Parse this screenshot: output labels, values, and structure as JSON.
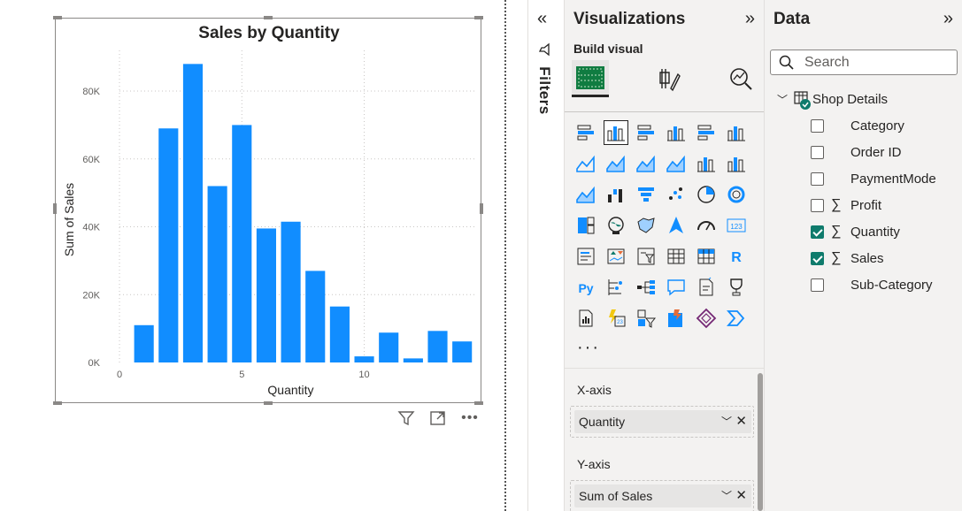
{
  "colors": {
    "bar": "#118dff",
    "accent_check": "#0f7b6c",
    "pane_bg": "#f3f2f1"
  },
  "chart_data": {
    "type": "bar",
    "title": "Sales by Quantity",
    "xlabel": "Quantity",
    "ylabel": "Sum of Sales",
    "x": [
      1,
      2,
      3,
      4,
      5,
      6,
      7,
      8,
      9,
      10,
      11,
      12,
      13,
      14
    ],
    "values": [
      11000,
      69000,
      88000,
      52000,
      70000,
      39500,
      41500,
      27000,
      16500,
      1800,
      8800,
      1200,
      9300,
      6200
    ],
    "x_ticks": [
      {
        "value": 0,
        "label": "0"
      },
      {
        "value": 5,
        "label": "5"
      },
      {
        "value": 10,
        "label": "10"
      }
    ],
    "y_ticks": [
      {
        "value": 0,
        "label": "0K"
      },
      {
        "value": 20000,
        "label": "20K"
      },
      {
        "value": 40000,
        "label": "40K"
      },
      {
        "value": 60000,
        "label": "60K"
      },
      {
        "value": 80000,
        "label": "80K"
      }
    ],
    "xlim": [
      0,
      14.5
    ],
    "ylim": [
      0,
      92000
    ],
    "grid": true
  },
  "filters": {
    "label": "Filters",
    "collapse_icon": "double-chevron-left-icon"
  },
  "visualizations": {
    "title": "Visualizations",
    "build_label": "Build visual",
    "more": "···",
    "icons": [
      "stacked-bar-chart",
      "clustered-column-chart",
      "clustered-bar-chart",
      "stacked-column-chart",
      "100-stacked-bar-chart",
      "100-stacked-column-chart",
      "line-chart",
      "area-chart",
      "stacked-area-chart",
      "100-stacked-area-chart",
      "line-clustered-column-chart",
      "line-stacked-column-chart",
      "ribbon-chart",
      "waterfall-chart",
      "funnel-chart",
      "scatter-chart",
      "pie-chart",
      "donut-chart",
      "treemap",
      "map",
      "filled-map",
      "azure-map",
      "gauge",
      "card",
      "multi-row-card",
      "kpi",
      "slicer",
      "table",
      "matrix",
      "r-visual",
      "python-visual",
      "key-influencers",
      "decomposition-tree",
      "qa-visual",
      "smart-narrative",
      "metrics",
      "paginated-report",
      "power-apps",
      "power-automate",
      "arcgis-map",
      "custom-visual-diamond",
      "custom-visual-chevron"
    ],
    "wells": [
      {
        "label": "X-axis",
        "field": "Quantity"
      },
      {
        "label": "Y-axis",
        "field": "Sum of Sales"
      }
    ]
  },
  "data_pane": {
    "title": "Data",
    "search_placeholder": "Search",
    "table_name": "Shop Details",
    "fields": [
      {
        "name": "Category",
        "checked": false,
        "sigma": false
      },
      {
        "name": "Order ID",
        "checked": false,
        "sigma": false
      },
      {
        "name": "PaymentMode",
        "checked": false,
        "sigma": false
      },
      {
        "name": "Profit",
        "checked": false,
        "sigma": true
      },
      {
        "name": "Quantity",
        "checked": true,
        "sigma": true
      },
      {
        "name": "Sales",
        "checked": true,
        "sigma": true
      },
      {
        "name": "Sub-Category",
        "checked": false,
        "sigma": false
      }
    ]
  }
}
